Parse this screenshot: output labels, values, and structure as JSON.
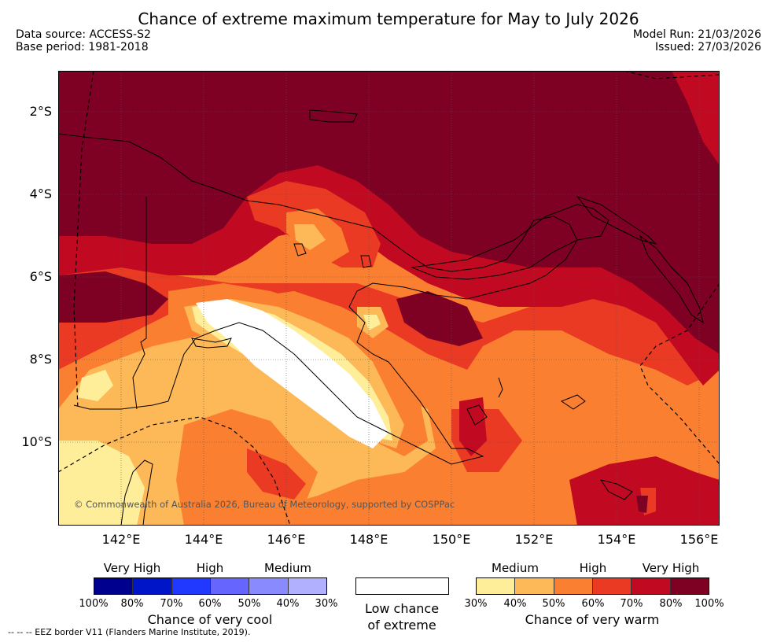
{
  "header": {
    "title": "Chance of extreme maximum temperature for May to July 2026",
    "data_source": "Data source: ACCESS-S2",
    "base_period": "Base period: 1981-2018",
    "model_run": "Model Run: 21/03/2026",
    "issued": "Issued: 27/03/2026"
  },
  "map": {
    "lat_labels": [
      "2°S",
      "4°S",
      "6°S",
      "8°S",
      "10°S"
    ],
    "lon_labels": [
      "142°E",
      "144°E",
      "146°E",
      "148°E",
      "150°E",
      "152°E",
      "154°E",
      "156°E"
    ],
    "copyright": "© Commonwealth of Australia 2026, Bureau of Meteorology, supported by COSPPac"
  },
  "legend": {
    "cool": {
      "headers": [
        "Very High",
        "High",
        "Medium"
      ],
      "ticks": [
        "100%",
        "80%",
        "70%",
        "60%",
        "50%",
        "40%",
        "30%"
      ],
      "colors": [
        "#00008f",
        "#0014c8",
        "#2138ff",
        "#6666ff",
        "#8a8aff",
        "#b0b0ff"
      ],
      "caption": "Chance of very cool"
    },
    "low": {
      "caption_line1": "Low chance",
      "caption_line2": "of extreme",
      "color": "#ffffff"
    },
    "warm": {
      "headers": [
        "Medium",
        "High",
        "Very High"
      ],
      "ticks": [
        "30%",
        "40%",
        "50%",
        "60%",
        "70%",
        "80%",
        "100%"
      ],
      "colors": [
        "#ffee99",
        "#fdb857",
        "#fb7f30",
        "#ea3a23",
        "#c10a21",
        "#7e0023"
      ],
      "caption": "Chance of very warm"
    }
  },
  "footer": {
    "eez_note": "--  --  -- EEZ border V11 (Flanders Marine Institute, 2019)."
  }
}
